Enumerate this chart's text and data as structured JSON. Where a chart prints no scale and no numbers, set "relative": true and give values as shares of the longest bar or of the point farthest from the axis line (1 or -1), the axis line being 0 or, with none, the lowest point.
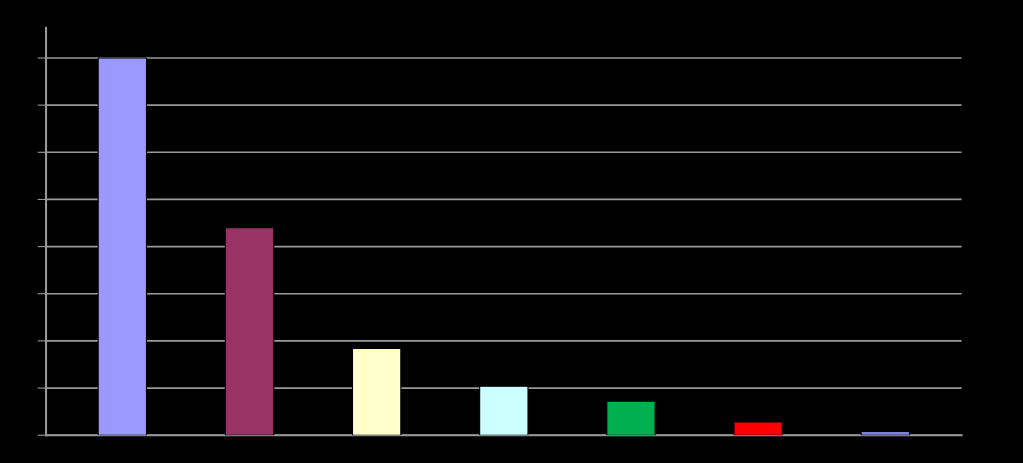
{
  "chart_data": {
    "type": "bar",
    "relative": true,
    "grid": "y",
    "categories": [
      null,
      null,
      null,
      null,
      null,
      null,
      null
    ],
    "values": [
      1,
      0.55,
      0.23,
      0.13,
      0.09,
      0.035,
      0.01
    ],
    "colors": [
      "#9999ff",
      "#993366",
      "#ffffcc",
      "#ccffff",
      "#00b050",
      "#ff0000",
      "#7f7fdf"
    ]
  }
}
